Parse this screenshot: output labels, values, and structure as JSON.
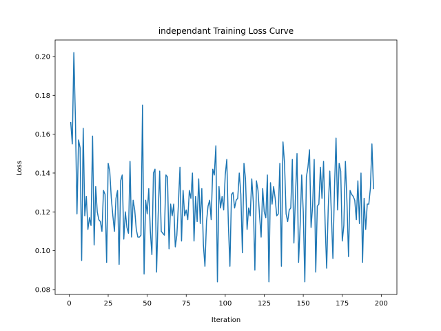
{
  "chart_data": {
    "type": "line",
    "title": "independant Training Loss Curve",
    "xlabel": "Iteration",
    "ylabel": "Loss",
    "xlim": [
      -9,
      210
    ],
    "ylim": [
      0.0775,
      0.2085
    ],
    "xticks": [
      0,
      25,
      50,
      75,
      100,
      125,
      150,
      175,
      200
    ],
    "yticks": [
      0.08,
      0.1,
      0.12,
      0.14,
      0.16,
      0.18,
      0.2
    ],
    "ytick_labels": [
      "0.08",
      "0.10",
      "0.12",
      "0.14",
      "0.16",
      "0.18",
      "0.20"
    ],
    "grid": false,
    "series": [
      {
        "color": "#1f77b4",
        "x_start": 1,
        "x_step": 1,
        "values": [
          0.166,
          0.155,
          0.202,
          0.168,
          0.119,
          0.157,
          0.153,
          0.095,
          0.163,
          0.118,
          0.128,
          0.111,
          0.117,
          0.113,
          0.159,
          0.103,
          0.133,
          0.12,
          0.116,
          0.115,
          0.11,
          0.131,
          0.129,
          0.094,
          0.145,
          0.141,
          0.127,
          0.118,
          0.11,
          0.127,
          0.131,
          0.093,
          0.136,
          0.139,
          0.106,
          0.12,
          0.112,
          0.109,
          0.146,
          0.107,
          0.126,
          0.121,
          0.111,
          0.107,
          0.107,
          0.108,
          0.175,
          0.088,
          0.126,
          0.119,
          0.132,
          0.11,
          0.098,
          0.14,
          0.142,
          0.089,
          0.118,
          0.141,
          0.11,
          0.109,
          0.108,
          0.139,
          0.138,
          0.101,
          0.124,
          0.118,
          0.124,
          0.102,
          0.108,
          0.124,
          0.143,
          0.105,
          0.131,
          0.118,
          0.121,
          0.116,
          0.131,
          0.127,
          0.14,
          0.105,
          0.128,
          0.115,
          0.137,
          0.114,
          0.132,
          0.103,
          0.092,
          0.115,
          0.123,
          0.126,
          0.116,
          0.142,
          0.139,
          0.154,
          0.084,
          0.133,
          0.122,
          0.128,
          0.121,
          0.139,
          0.147,
          0.114,
          0.092,
          0.129,
          0.13,
          0.122,
          0.126,
          0.127,
          0.14,
          0.129,
          0.099,
          0.145,
          0.137,
          0.111,
          0.122,
          0.118,
          0.137,
          0.125,
          0.09,
          0.136,
          0.131,
          0.118,
          0.107,
          0.132,
          0.12,
          0.117,
          0.139,
          0.084,
          0.135,
          0.124,
          0.133,
          0.127,
          0.118,
          0.119,
          0.145,
          0.092,
          0.156,
          0.145,
          0.119,
          0.115,
          0.121,
          0.122,
          0.147,
          0.104,
          0.128,
          0.15,
          0.094,
          0.113,
          0.139,
          0.12,
          0.084,
          0.138,
          0.143,
          0.152,
          0.112,
          0.123,
          0.147,
          0.089,
          0.123,
          0.124,
          0.143,
          0.127,
          0.146,
          0.114,
          0.091,
          0.122,
          0.141,
          0.119,
          0.096,
          0.132,
          0.158,
          0.121,
          0.145,
          0.141,
          0.105,
          0.113,
          0.146,
          0.125,
          0.097,
          0.131,
          0.129,
          0.128,
          0.126,
          0.116,
          0.136,
          0.114,
          0.14,
          0.094,
          0.127,
          0.111,
          0.124,
          0.124,
          0.132,
          0.155,
          0.132
        ]
      }
    ]
  }
}
